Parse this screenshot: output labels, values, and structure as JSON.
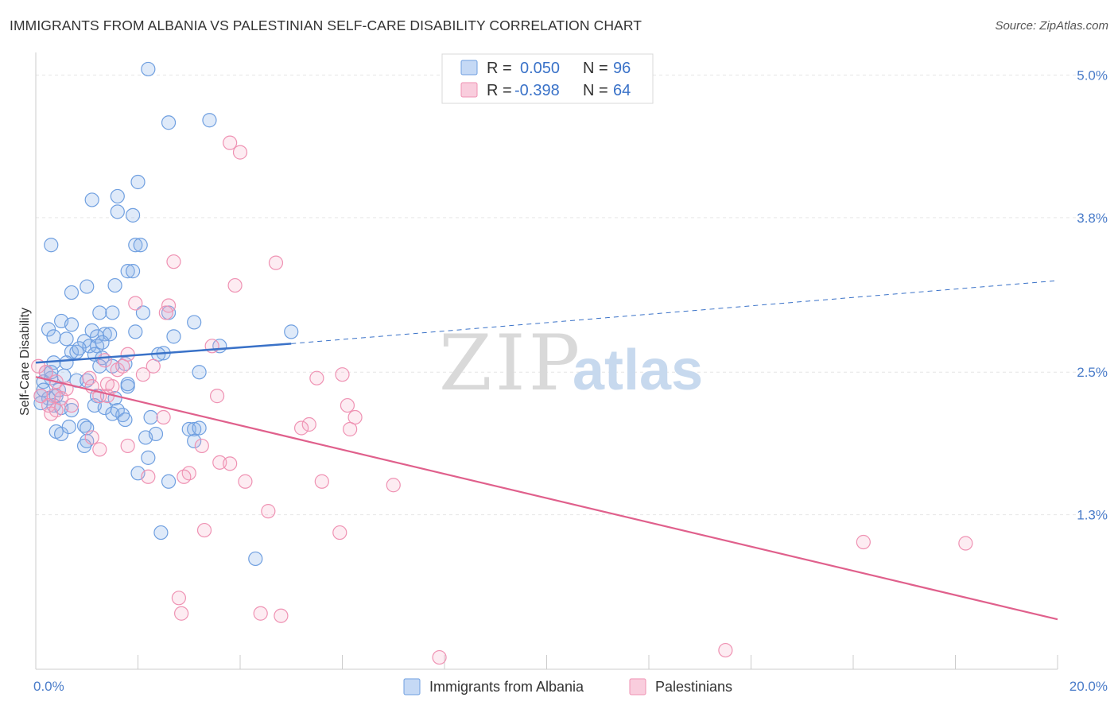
{
  "header": {
    "title": "IMMIGRANTS FROM ALBANIA VS PALESTINIAN SELF-CARE DISABILITY CORRELATION CHART",
    "source": "Source: ZipAtlas.com"
  },
  "watermark": {
    "part1": "ZIP",
    "part2": "atlas"
  },
  "colors": {
    "albania": "#6f9fe0",
    "albania_line": "#3a72c8",
    "palestinian": "#ef92b3",
    "palestinian_line": "#e0608c",
    "grid": "#e6e6e6",
    "tick_label": "#4a7cc9"
  },
  "legend": {
    "r_label": "R =",
    "n_label": "N =",
    "series": [
      {
        "r": "0.050",
        "n": "96"
      },
      {
        "r": "-0.398",
        "n": "64"
      }
    ]
  },
  "bottom_legend": [
    "Immigrants from Albania",
    "Palestinians"
  ],
  "chart_data": {
    "type": "scatter",
    "title": "IMMIGRANTS FROM ALBANIA VS PALESTINIAN SELF-CARE DISABILITY CORRELATION CHART",
    "xlabel": "",
    "ylabel": "Self-Care Disability",
    "xlim": [
      0,
      20
    ],
    "ylim": [
      0.0,
      5.15
    ],
    "x_tick_labels": [
      "0.0%",
      "20.0%"
    ],
    "y_ticks": [
      1.3,
      2.5,
      3.8,
      5.0
    ],
    "y_tick_labels": [
      "1.3%",
      "2.5%",
      "3.8%",
      "5.0%"
    ],
    "grid": true,
    "legend_position": "top-center",
    "series": [
      {
        "name": "Immigrants from Albania",
        "r": 0.05,
        "n": 96,
        "trend": {
          "x": [
            0,
            5.0
          ],
          "y": [
            2.58,
            2.74
          ],
          "dashed_to": [
            20,
            3.27
          ]
        },
        "points": [
          [
            2.2,
            5.05
          ],
          [
            2.6,
            4.6
          ],
          [
            3.4,
            4.62
          ],
          [
            2.0,
            4.1
          ],
          [
            1.1,
            3.95
          ],
          [
            1.6,
            3.98
          ],
          [
            1.6,
            3.85
          ],
          [
            1.9,
            3.82
          ],
          [
            0.3,
            3.57
          ],
          [
            1.95,
            3.57
          ],
          [
            2.05,
            3.57
          ],
          [
            1.8,
            3.35
          ],
          [
            1.9,
            3.35
          ],
          [
            1.55,
            3.23
          ],
          [
            0.7,
            3.17
          ],
          [
            1.0,
            3.22
          ],
          [
            1.25,
            3.0
          ],
          [
            1.5,
            3.0
          ],
          [
            2.1,
            3.0
          ],
          [
            2.6,
            3.0
          ],
          [
            0.5,
            2.93
          ],
          [
            0.7,
            2.9
          ],
          [
            3.1,
            2.92
          ],
          [
            0.25,
            2.86
          ],
          [
            0.35,
            2.8
          ],
          [
            1.1,
            2.85
          ],
          [
            1.35,
            2.82
          ],
          [
            1.45,
            2.82
          ],
          [
            1.95,
            2.84
          ],
          [
            5.0,
            2.84
          ],
          [
            0.6,
            2.78
          ],
          [
            0.95,
            2.76
          ],
          [
            1.2,
            2.8
          ],
          [
            2.7,
            2.8
          ],
          [
            1.05,
            2.72
          ],
          [
            1.2,
            2.72
          ],
          [
            3.6,
            2.72
          ],
          [
            0.7,
            2.67
          ],
          [
            0.8,
            2.67
          ],
          [
            1.15,
            2.65
          ],
          [
            1.3,
            2.62
          ],
          [
            2.5,
            2.66
          ],
          [
            0.35,
            2.58
          ],
          [
            0.6,
            2.58
          ],
          [
            1.5,
            2.55
          ],
          [
            1.75,
            2.57
          ],
          [
            1.25,
            2.55
          ],
          [
            0.2,
            2.5
          ],
          [
            0.3,
            2.45
          ],
          [
            0.55,
            2.47
          ],
          [
            0.8,
            2.43
          ],
          [
            1.0,
            2.43
          ],
          [
            3.2,
            2.5
          ],
          [
            0.15,
            2.42
          ],
          [
            1.8,
            2.38
          ],
          [
            0.1,
            2.3
          ],
          [
            0.25,
            2.28
          ],
          [
            0.4,
            2.3
          ],
          [
            1.2,
            2.3
          ],
          [
            1.55,
            2.28
          ],
          [
            0.1,
            2.24
          ],
          [
            0.35,
            2.22
          ],
          [
            0.5,
            2.2
          ],
          [
            0.7,
            2.18
          ],
          [
            1.15,
            2.22
          ],
          [
            1.35,
            2.2
          ],
          [
            1.6,
            2.18
          ],
          [
            1.7,
            2.14
          ],
          [
            1.75,
            2.1
          ],
          [
            2.25,
            2.12
          ],
          [
            0.95,
            2.05
          ],
          [
            1.0,
            2.03
          ],
          [
            0.4,
            2.0
          ],
          [
            0.5,
            1.98
          ],
          [
            0.65,
            2.04
          ],
          [
            3.0,
            2.02
          ],
          [
            3.1,
            2.02
          ],
          [
            3.2,
            2.03
          ],
          [
            2.15,
            1.95
          ],
          [
            2.35,
            1.98
          ],
          [
            1.0,
            1.92
          ],
          [
            0.95,
            1.88
          ],
          [
            3.1,
            1.92
          ],
          [
            2.2,
            1.78
          ],
          [
            2.0,
            1.65
          ],
          [
            2.6,
            1.58
          ],
          [
            2.45,
            1.15
          ],
          [
            4.3,
            0.93
          ],
          [
            0.3,
            2.5
          ],
          [
            0.45,
            2.35
          ],
          [
            1.8,
            2.4
          ],
          [
            2.4,
            2.65
          ],
          [
            1.3,
            2.75
          ],
          [
            0.85,
            2.7
          ],
          [
            0.15,
            2.35
          ],
          [
            1.5,
            2.15
          ]
        ]
      },
      {
        "name": "Palestinians",
        "r": -0.398,
        "n": 64,
        "trend": {
          "x": [
            0,
            20
          ],
          "y": [
            2.46,
            0.42
          ]
        },
        "points": [
          [
            3.8,
            4.43
          ],
          [
            4.0,
            4.35
          ],
          [
            2.7,
            3.43
          ],
          [
            4.7,
            3.42
          ],
          [
            3.9,
            3.23
          ],
          [
            1.95,
            3.08
          ],
          [
            2.6,
            3.06
          ],
          [
            2.55,
            3.0
          ],
          [
            3.45,
            2.72
          ],
          [
            1.8,
            2.65
          ],
          [
            1.35,
            2.6
          ],
          [
            2.3,
            2.55
          ],
          [
            1.6,
            2.52
          ],
          [
            1.7,
            2.55
          ],
          [
            1.05,
            2.45
          ],
          [
            2.1,
            2.48
          ],
          [
            5.5,
            2.45
          ],
          [
            6.0,
            2.48
          ],
          [
            0.2,
            2.5
          ],
          [
            0.4,
            2.42
          ],
          [
            1.1,
            2.38
          ],
          [
            1.5,
            2.38
          ],
          [
            0.6,
            2.36
          ],
          [
            1.4,
            2.4
          ],
          [
            0.1,
            2.3
          ],
          [
            0.35,
            2.3
          ],
          [
            0.5,
            2.28
          ],
          [
            1.25,
            2.3
          ],
          [
            1.4,
            2.3
          ],
          [
            3.55,
            2.3
          ],
          [
            0.25,
            2.22
          ],
          [
            0.4,
            2.18
          ],
          [
            0.7,
            2.22
          ],
          [
            6.1,
            2.22
          ],
          [
            2.5,
            2.12
          ],
          [
            6.25,
            2.12
          ],
          [
            5.35,
            2.06
          ],
          [
            5.2,
            2.03
          ],
          [
            6.15,
            2.02
          ],
          [
            0.3,
            2.15
          ],
          [
            1.1,
            1.95
          ],
          [
            1.25,
            1.85
          ],
          [
            1.8,
            1.88
          ],
          [
            3.25,
            1.88
          ],
          [
            3.6,
            1.74
          ],
          [
            3.8,
            1.73
          ],
          [
            3.0,
            1.65
          ],
          [
            2.9,
            1.62
          ],
          [
            2.2,
            1.62
          ],
          [
            4.1,
            1.58
          ],
          [
            5.6,
            1.58
          ],
          [
            7.0,
            1.55
          ],
          [
            4.55,
            1.33
          ],
          [
            3.3,
            1.17
          ],
          [
            5.95,
            1.15
          ],
          [
            18.2,
            1.06
          ],
          [
            16.2,
            1.07
          ],
          [
            2.8,
            0.6
          ],
          [
            2.85,
            0.47
          ],
          [
            4.4,
            0.47
          ],
          [
            4.8,
            0.45
          ],
          [
            7.9,
            0.1
          ],
          [
            13.5,
            0.16
          ],
          [
            0.05,
            2.55
          ]
        ]
      }
    ]
  }
}
